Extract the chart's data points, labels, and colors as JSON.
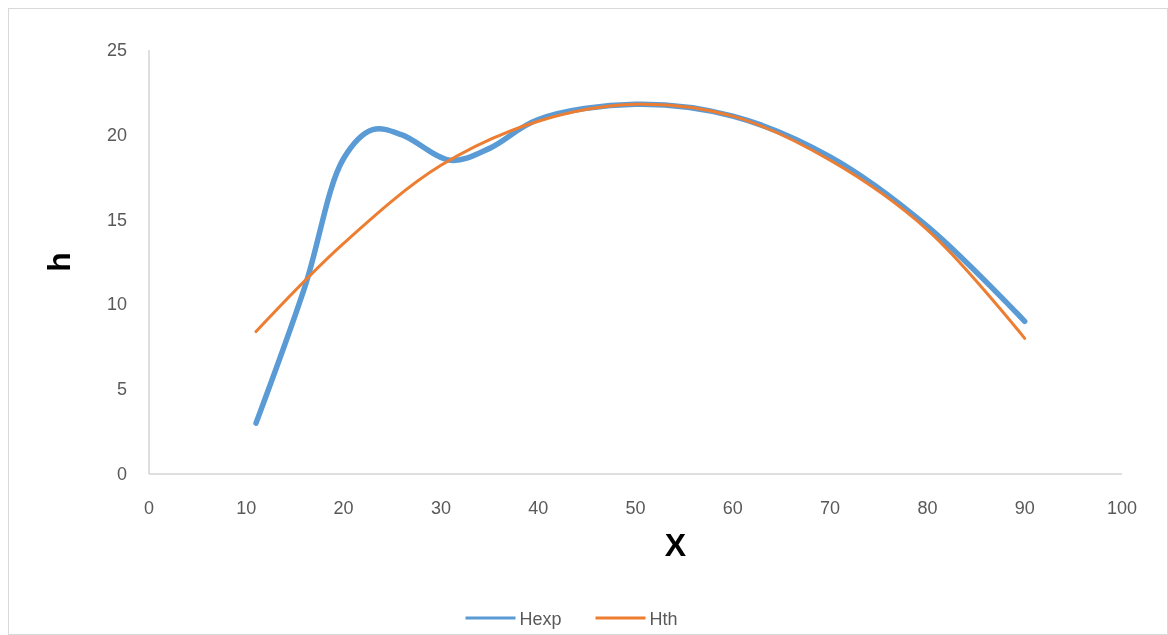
{
  "chart_data": {
    "type": "line",
    "xlabel": "X",
    "ylabel": "h",
    "xlim": [
      0,
      100
    ],
    "xticks": [
      0,
      10,
      20,
      30,
      40,
      50,
      60,
      70,
      80,
      90,
      100
    ],
    "ylim": [
      0,
      25
    ],
    "yticks": [
      0,
      5,
      10,
      15,
      20,
      25
    ],
    "grid": false,
    "legend": "bottom",
    "marker": "none",
    "line_style": "solid",
    "series": [
      {
        "name": "Hexp",
        "color": "#5b9bd5",
        "x": [
          11,
          16,
          20,
          23,
          26,
          31,
          35,
          40,
          50,
          60,
          70,
          80,
          90
        ],
        "values": [
          3,
          11,
          18.6,
          20.3,
          20,
          18.5,
          19.2,
          20.9,
          21.8,
          21.1,
          18.7,
          14.6,
          9
        ]
      },
      {
        "name": "Hth",
        "color": "#ed7d31",
        "x": [
          11,
          20,
          30,
          40,
          50,
          60,
          70,
          80,
          90
        ],
        "values": [
          8.4,
          13.6,
          18.2,
          20.8,
          21.8,
          21.1,
          18.5,
          14.4,
          8
        ]
      }
    ]
  }
}
